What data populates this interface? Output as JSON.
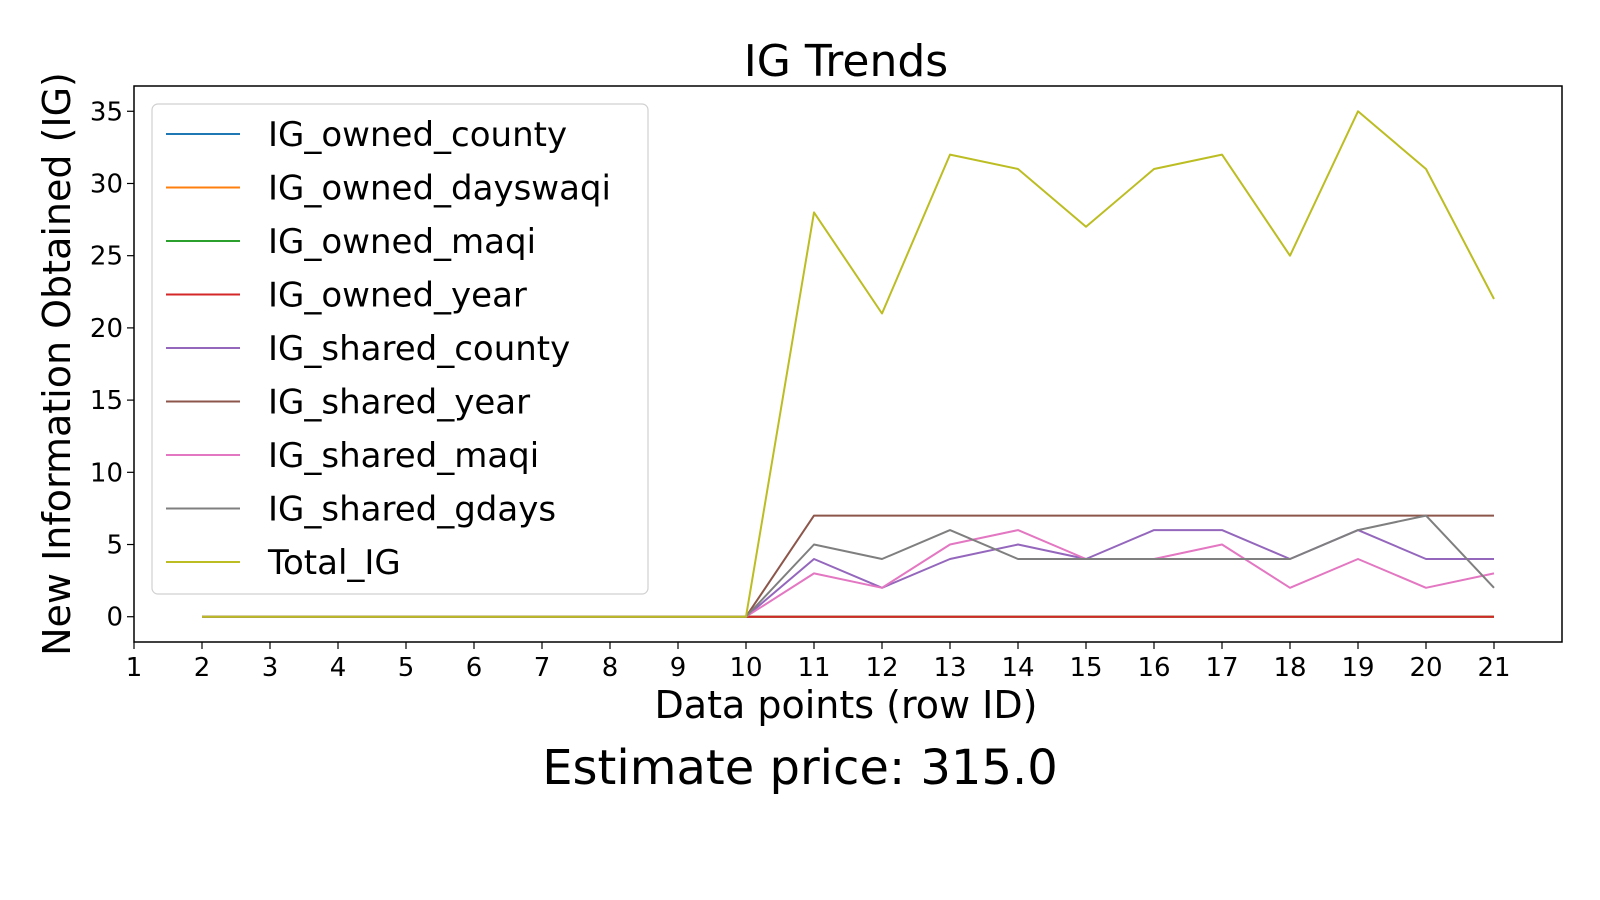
{
  "chart_data": {
    "type": "line",
    "title": "IG Trends",
    "xlabel": "Data points (row ID)",
    "ylabel": "New Information Obtained (IG)",
    "xlim": [
      1,
      22
    ],
    "ylim": [
      -1.75,
      36.75
    ],
    "xticks": [
      1,
      2,
      3,
      4,
      5,
      6,
      7,
      8,
      9,
      10,
      11,
      12,
      13,
      14,
      15,
      16,
      17,
      18,
      19,
      20,
      21
    ],
    "yticks": [
      0,
      5,
      10,
      15,
      20,
      25,
      30,
      35
    ],
    "grid": false,
    "legend_position": "upper-left",
    "x": [
      2,
      3,
      4,
      5,
      6,
      7,
      8,
      9,
      10,
      11,
      12,
      13,
      14,
      15,
      16,
      17,
      18,
      19,
      20,
      21
    ],
    "series": [
      {
        "name": "IG_owned_county",
        "color": "#1f77b4",
        "values": [
          0,
          0,
          0,
          0,
          0,
          0,
          0,
          0,
          0,
          0,
          0,
          0,
          0,
          0,
          0,
          0,
          0,
          0,
          0,
          0
        ]
      },
      {
        "name": "IG_owned_dayswaqi",
        "color": "#ff7f0e",
        "values": [
          0,
          0,
          0,
          0,
          0,
          0,
          0,
          0,
          0,
          0,
          0,
          0,
          0,
          0,
          0,
          0,
          0,
          0,
          0,
          0
        ]
      },
      {
        "name": "IG_owned_maqi",
        "color": "#2ca02c",
        "values": [
          0,
          0,
          0,
          0,
          0,
          0,
          0,
          0,
          0,
          0,
          0,
          0,
          0,
          0,
          0,
          0,
          0,
          0,
          0,
          0
        ]
      },
      {
        "name": "IG_owned_year",
        "color": "#d62728",
        "values": [
          0,
          0,
          0,
          0,
          0,
          0,
          0,
          0,
          0,
          0,
          0,
          0,
          0,
          0,
          0,
          0,
          0,
          0,
          0,
          0
        ]
      },
      {
        "name": "IG_shared_county",
        "color": "#9467bd",
        "values": [
          0,
          0,
          0,
          0,
          0,
          0,
          0,
          0,
          0,
          4,
          2,
          4,
          5,
          4,
          6,
          6,
          4,
          6,
          4,
          4
        ]
      },
      {
        "name": "IG_shared_year",
        "color": "#8c564b",
        "values": [
          0,
          0,
          0,
          0,
          0,
          0,
          0,
          0,
          0,
          7,
          7,
          7,
          7,
          7,
          7,
          7,
          7,
          7,
          7,
          7
        ]
      },
      {
        "name": "IG_shared_maqi",
        "color": "#e377c2",
        "values": [
          0,
          0,
          0,
          0,
          0,
          0,
          0,
          0,
          0,
          3,
          2,
          5,
          6,
          4,
          4,
          5,
          2,
          4,
          2,
          3
        ]
      },
      {
        "name": "IG_shared_gdays",
        "color": "#7f7f7f",
        "values": [
          0,
          0,
          0,
          0,
          0,
          0,
          0,
          0,
          0,
          5,
          4,
          6,
          4,
          4,
          4,
          4,
          4,
          6,
          7,
          2
        ]
      },
      {
        "name": "Total_IG",
        "color": "#bcbd22",
        "values": [
          0,
          0,
          0,
          0,
          0,
          0,
          0,
          0,
          0,
          28,
          21,
          32,
          31,
          27,
          31,
          32,
          25,
          35,
          31,
          22
        ]
      }
    ]
  },
  "footer": {
    "estimate_price": "Estimate price: 315.0"
  }
}
